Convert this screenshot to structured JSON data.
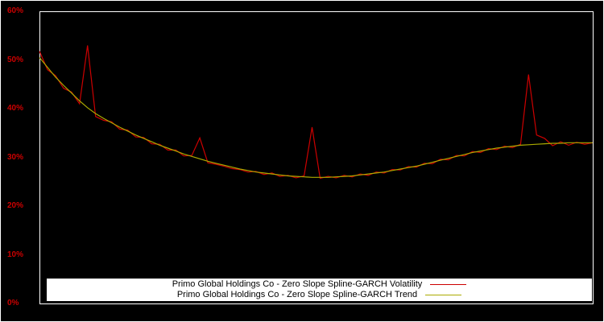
{
  "colors": {
    "background": "#000000",
    "frame": "#ffffff",
    "axis_label": "#cc0000",
    "legend_background": "#ffffff",
    "legend_text": "#000000",
    "volatility_line": "#cc0000",
    "trend_line": "#aaaa00"
  },
  "chart_data": {
    "type": "line",
    "title": "",
    "xlabel": "",
    "ylabel": "",
    "ylim": [
      0,
      60
    ],
    "grid": false,
    "legend_position": "bottom-center",
    "y_ticks": [
      {
        "value": 0,
        "label": "0%"
      },
      {
        "value": 10,
        "label": "10%"
      },
      {
        "value": 20,
        "label": "20%"
      },
      {
        "value": 30,
        "label": "30%"
      },
      {
        "value": 40,
        "label": "40%"
      },
      {
        "value": 50,
        "label": "50%"
      },
      {
        "value": 60,
        "label": "60%"
      }
    ],
    "series": [
      {
        "name": "Primo Global Holdings Co - Zero Slope Spline-GARCH Volatility",
        "color": "#cc0000",
        "values": [
          51.8,
          48.0,
          46.8,
          44.2,
          43.4,
          41.0,
          53.0,
          38.4,
          37.6,
          37.3,
          35.8,
          35.6,
          34.2,
          34.1,
          32.8,
          32.7,
          31.5,
          31.5,
          30.3,
          30.4,
          34.0,
          28.9,
          28.6,
          28.2,
          27.7,
          27.5,
          27.0,
          27.1,
          26.5,
          26.8,
          26.1,
          26.3,
          25.8,
          26.2,
          36.2,
          25.7,
          26.1,
          25.8,
          26.3,
          26.0,
          26.6,
          26.3,
          27.0,
          26.8,
          27.5,
          27.4,
          28.1,
          28.0,
          28.8,
          28.7,
          29.6,
          29.5,
          30.4,
          30.3,
          31.2,
          31.0,
          31.8,
          31.6,
          32.3,
          32.0,
          32.7,
          47.0,
          34.6,
          33.9,
          32.4,
          33.2,
          32.5,
          33.1,
          32.7,
          33.0
        ]
      },
      {
        "name": "Primo Global Holdings Co - Zero Slope Spline-GARCH Trend",
        "color": "#aaaa00",
        "values": [
          50.5,
          48.5,
          46.5,
          44.8,
          43.2,
          41.6,
          40.2,
          39.0,
          38.0,
          37.1,
          36.2,
          35.4,
          34.6,
          33.9,
          33.2,
          32.5,
          31.9,
          31.3,
          30.7,
          30.2,
          29.7,
          29.2,
          28.8,
          28.4,
          28.0,
          27.6,
          27.3,
          27.0,
          26.8,
          26.6,
          26.4,
          26.2,
          26.1,
          26.0,
          25.9,
          25.9,
          25.9,
          26.0,
          26.1,
          26.2,
          26.4,
          26.6,
          26.8,
          27.0,
          27.3,
          27.6,
          27.9,
          28.2,
          28.6,
          29.0,
          29.4,
          29.8,
          30.2,
          30.6,
          31.0,
          31.3,
          31.6,
          31.9,
          32.1,
          32.3,
          32.5,
          32.6,
          32.7,
          32.8,
          32.9,
          32.9,
          33.0,
          33.0,
          33.0,
          33.0
        ]
      }
    ]
  }
}
